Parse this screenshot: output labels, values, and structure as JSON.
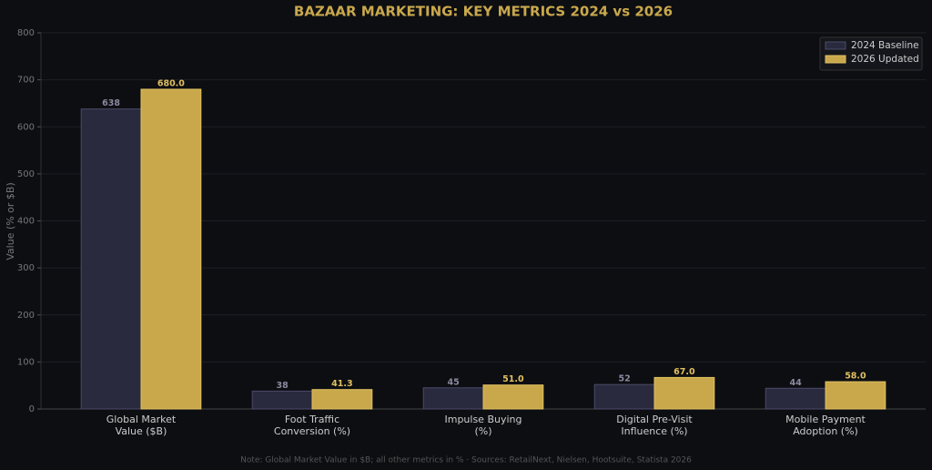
{
  "chart_data": {
    "type": "bar",
    "title": "BAZAAR MARKETING: KEY METRICS 2024 vs 2026",
    "y_label": "Value (% or $B)",
    "note": "Note: Global Market Value in $B; all other metrics in % · Sources: RetailNext, Nielsen, Hootsuite, Statista 2026",
    "categories": [
      "Global Market\nValue ($B)",
      "Foot Traffic\nConversion (%)",
      "Impulse Buying\n(%)",
      "Digital Pre-Visit\nInfluence (%)",
      "Mobile Payment\nAdoption (%)"
    ],
    "series": [
      {
        "name": "2024 Baseline",
        "color": "#2a2a3e",
        "edge": "#4a4a6a",
        "label_color": "#8a8aa0",
        "values": [
          638,
          38,
          45,
          52,
          44
        ]
      },
      {
        "name": "2026 Updated",
        "color": "#c9a84c",
        "edge": "#e0c060",
        "label_color": "#e0c060",
        "values": [
          680,
          41.3,
          51,
          67,
          58
        ],
        "value_labels": [
          "680.0",
          "41.3",
          "51.0",
          "67.0",
          "58.0"
        ]
      }
    ],
    "ylim": [
      0,
      800
    ],
    "yticks": [
      0,
      100,
      200,
      300,
      400,
      500,
      600,
      700,
      800
    ],
    "grid": true,
    "legend": "upper right"
  }
}
